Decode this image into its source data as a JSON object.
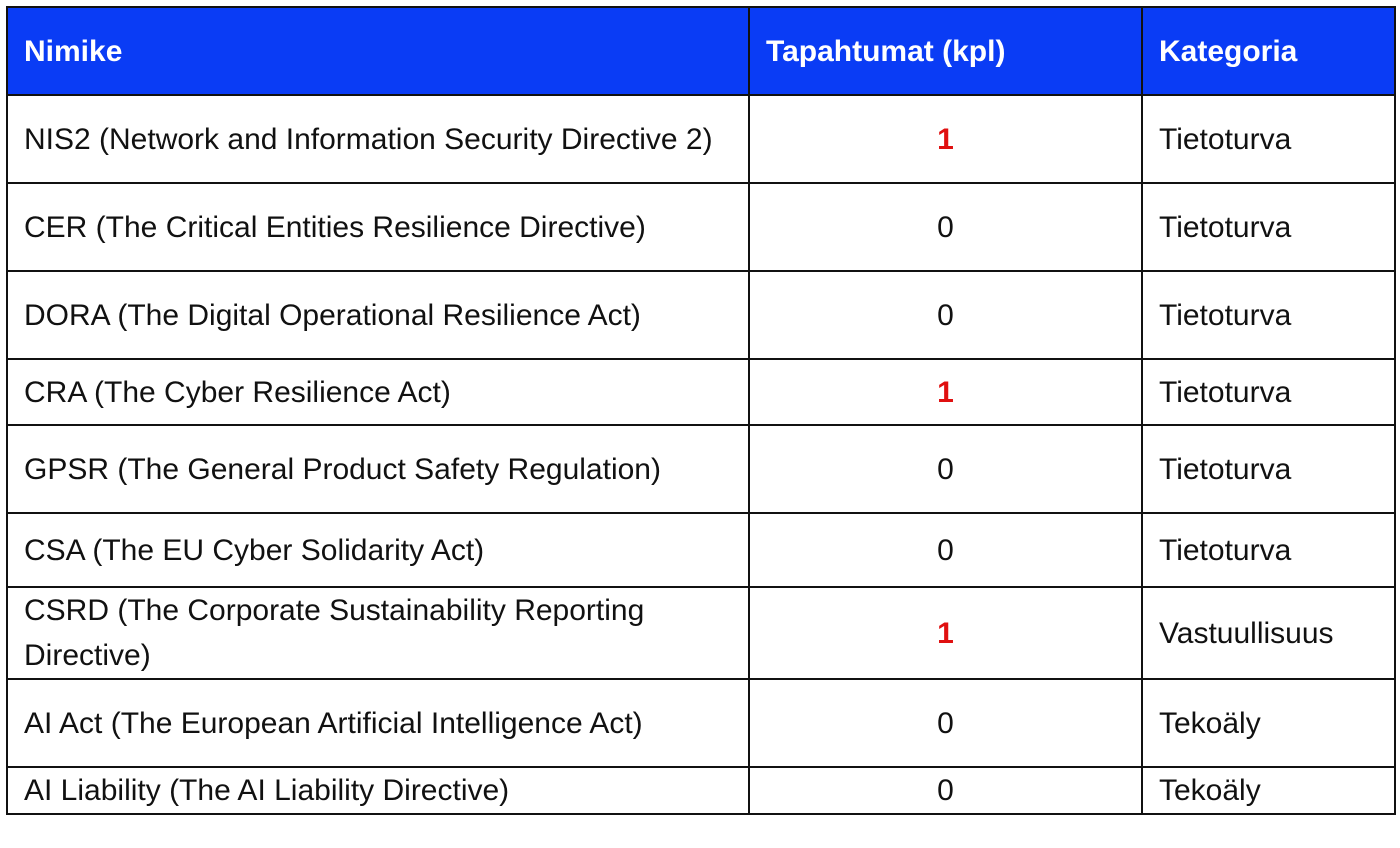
{
  "table": {
    "header": [
      "Nimike",
      "Tapahtumat (kpl)",
      "Kategoria"
    ],
    "rows": [
      [
        "NIS2 (Network and Information Security Directive 2)",
        1,
        "Tietoturva"
      ],
      [
        "CER (The Critical Entities Resilience Directive)",
        0,
        "Tietoturva"
      ],
      [
        "DORA (The Digital Operational Resilience Act)",
        0,
        "Tietoturva"
      ],
      [
        "CRA (The Cyber Resilience Act)",
        1,
        "Tietoturva"
      ],
      [
        "GPSR (The General Product Safety Regulation)",
        0,
        "Tietoturva"
      ],
      [
        "CSA (The EU Cyber Solidarity Act)",
        0,
        "Tietoturva"
      ],
      [
        "CSRD (The Corporate Sustainability Reporting Directive)",
        1,
        "Vastuullisuus"
      ],
      [
        "AI Act (The European Artificial Intelligence Act)",
        0,
        "Tekoäly"
      ],
      [
        "AI Liability (The AI Liability Directive)",
        0,
        "Tekoäly"
      ]
    ]
  }
}
